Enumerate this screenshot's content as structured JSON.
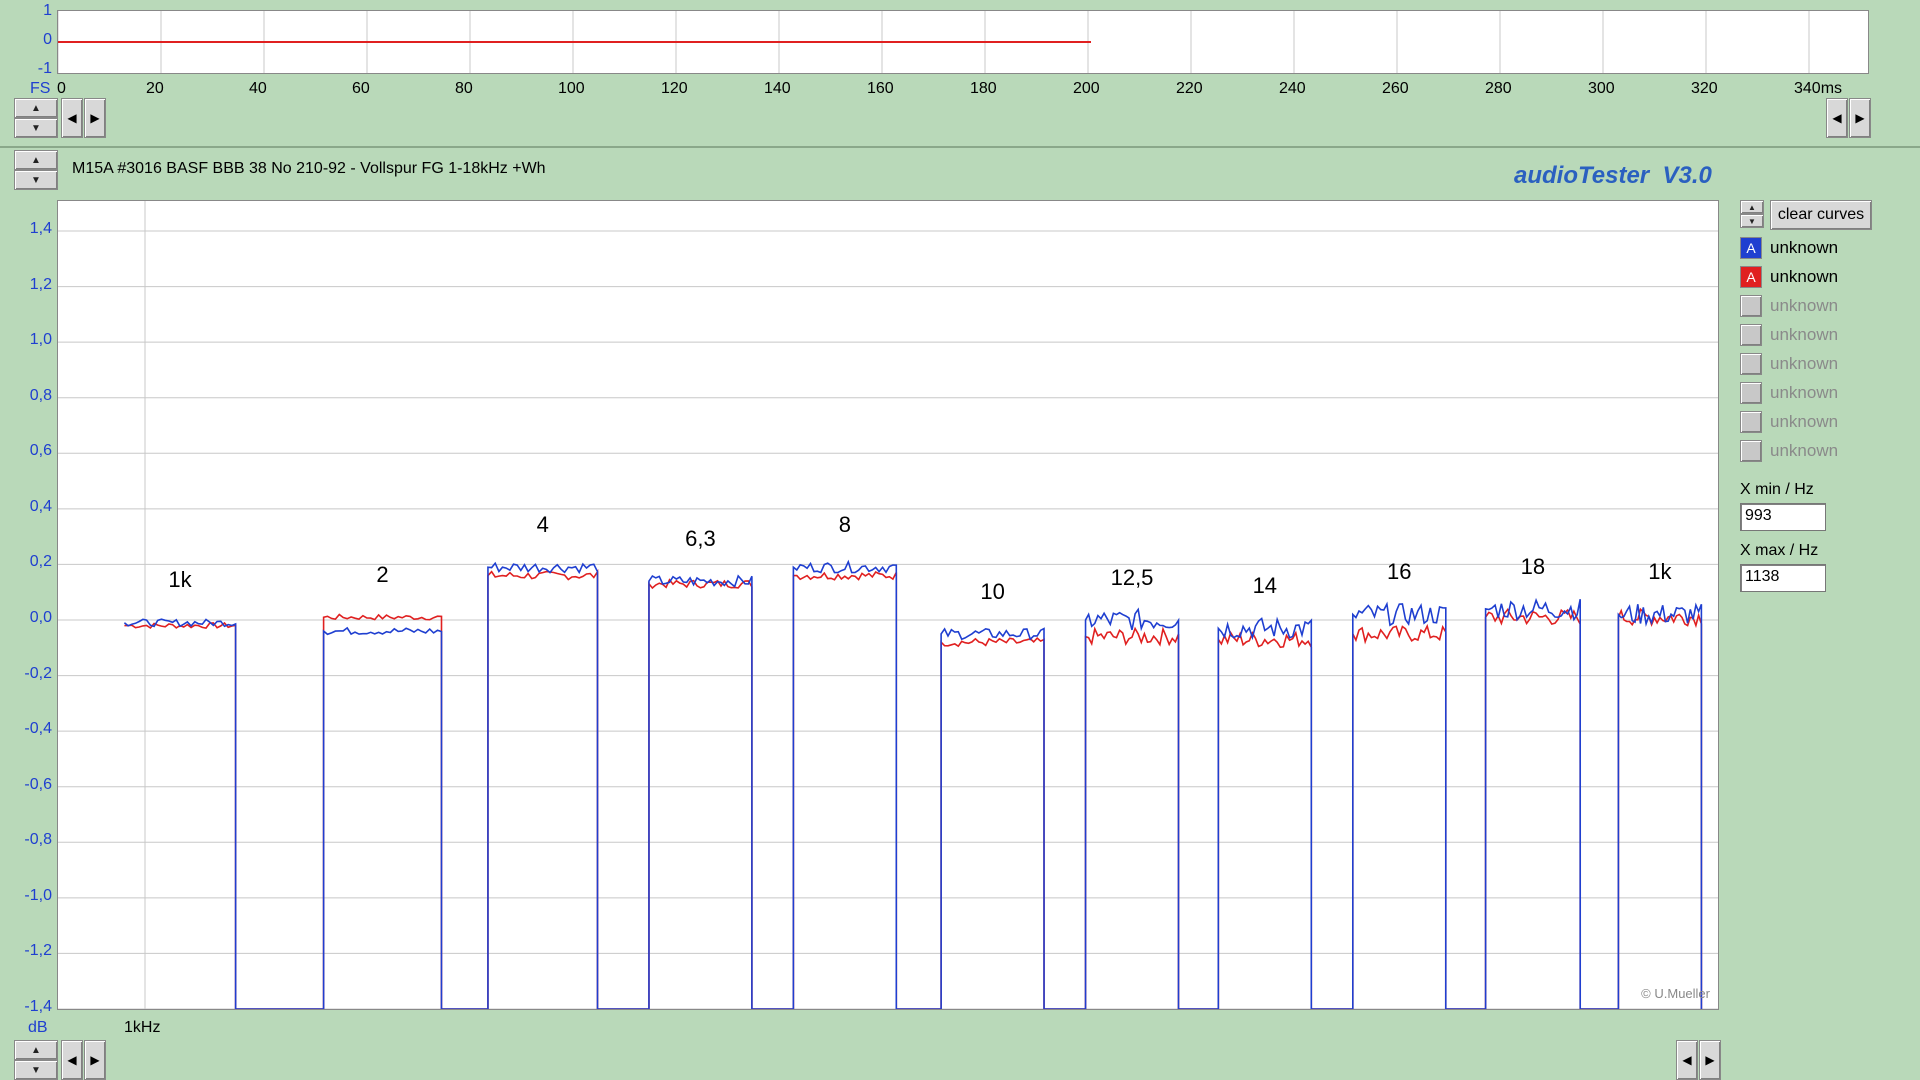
{
  "top_strip": {
    "y_ticks": [
      "1",
      "0",
      "-1"
    ],
    "fs_label": "FS",
    "x_ticks": [
      "0",
      "20",
      "40",
      "60",
      "80",
      "100",
      "120",
      "140",
      "160",
      "180",
      "200",
      "220",
      "240",
      "260",
      "280",
      "300",
      "320",
      "340ms"
    ]
  },
  "header": {
    "title": "M15A #3016 BASF BBB 38 No 210-92 - Vollspur FG 1-18kHz +Wh",
    "app_name": "audioTester  V3.0"
  },
  "main_plot": {
    "db_label": "dB",
    "freq_label": "1kHz",
    "copyright": "© U.Mueller",
    "y_ticks": [
      "1,4",
      "1,2",
      "1,0",
      "0,8",
      "0,6",
      "0,4",
      "0,2",
      "0,0",
      "-0,2",
      "-0,4",
      "-0,6",
      "-0,8",
      "-1,0",
      "-1,2",
      "-1,4"
    ]
  },
  "right_panel": {
    "clear_button": "clear curves",
    "legend": [
      {
        "marker": "A",
        "label": "unknown",
        "color": "#1f3fd0",
        "active": true
      },
      {
        "marker": "A",
        "label": "unknown",
        "color": "#e02020",
        "active": true
      },
      {
        "marker": "",
        "label": "unknown",
        "color": "#c8c8c8",
        "active": false
      },
      {
        "marker": "",
        "label": "unknown",
        "color": "#c8c8c8",
        "active": false
      },
      {
        "marker": "",
        "label": "unknown",
        "color": "#c8c8c8",
        "active": false
      },
      {
        "marker": "",
        "label": "unknown",
        "color": "#c8c8c8",
        "active": false
      },
      {
        "marker": "",
        "label": "unknown",
        "color": "#c8c8c8",
        "active": false
      },
      {
        "marker": "",
        "label": "unknown",
        "color": "#c8c8c8",
        "active": false
      }
    ],
    "xmin_label": "X min / Hz",
    "xmin_value": "993",
    "xmax_label": "X max / Hz",
    "xmax_value": "1138"
  },
  "chart_data": {
    "type": "line",
    "y_range": [
      -1.4,
      1.4
    ],
    "grid": true,
    "series_colors": [
      "#1f3fd0",
      "#e02020"
    ],
    "segment_labels": [
      "1k",
      "2",
      "4",
      "6,3",
      "8",
      "10",
      "12,5",
      "14",
      "16",
      "18",
      "1k"
    ],
    "segments": [
      {
        "label": "1k",
        "x": [
          0.04,
          0.107
        ],
        "blue": -0.01,
        "red": -0.02
      },
      {
        "label": "2",
        "x": [
          0.16,
          0.231
        ],
        "blue": -0.04,
        "red": 0.01
      },
      {
        "label": "4",
        "x": [
          0.259,
          0.325
        ],
        "blue": 0.19,
        "red": 0.16
      },
      {
        "label": "6,3",
        "x": [
          0.356,
          0.418
        ],
        "blue": 0.14,
        "red": 0.13
      },
      {
        "label": "8",
        "x": [
          0.443,
          0.505
        ],
        "blue": 0.19,
        "red": 0.16
      },
      {
        "label": "10",
        "x": [
          0.532,
          0.594
        ],
        "blue": -0.05,
        "red": -0.08
      },
      {
        "label": "12,5",
        "x": [
          0.619,
          0.675
        ],
        "blue": 0.0,
        "red": -0.06
      },
      {
        "label": "14",
        "x": [
          0.699,
          0.755
        ],
        "blue": -0.03,
        "red": -0.07
      },
      {
        "label": "16",
        "x": [
          0.78,
          0.836
        ],
        "blue": 0.02,
        "red": -0.05
      },
      {
        "label": "18",
        "x": [
          0.86,
          0.917
        ],
        "blue": 0.04,
        "red": 0.01
      },
      {
        "label": "1k",
        "x": [
          0.94,
          0.99
        ],
        "blue": 0.02,
        "red": 0.01
      }
    ],
    "floor": -1.4
  }
}
